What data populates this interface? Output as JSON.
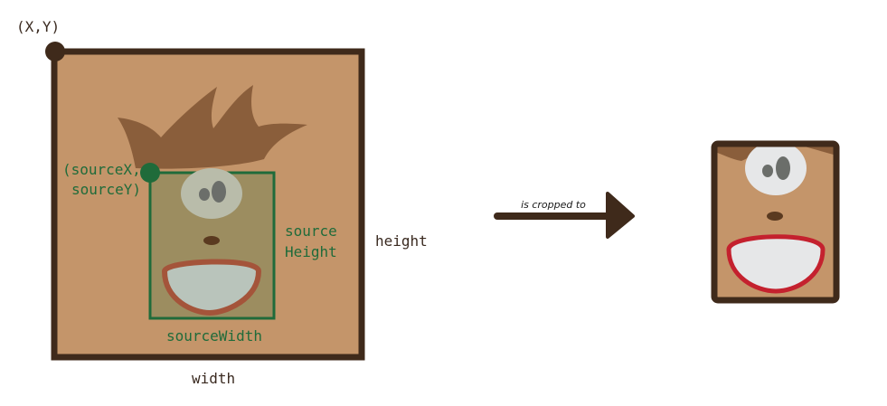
{
  "labels": {
    "origin": "(X,Y)",
    "source_origin_line1": "(sourceX,",
    "source_origin_line2": "sourceY)",
    "source_height_line1": "source",
    "source_height_line2": "Height",
    "source_width": "sourceWidth",
    "height": "height",
    "width": "width",
    "arrow_caption": "is cropped to"
  },
  "colors": {
    "frame": "#3f2a1b",
    "canvas": "#c4956a",
    "hair": "#8a5e3b",
    "crop_outline": "#1f6b3a",
    "crop_fill": "#9c8d60",
    "label_green": "#1f6b3a",
    "label_dark": "#3a2a20",
    "mouth_red": "#c4212e",
    "mouth_dimmed": "#a4543a",
    "eye_white": "#e6e7e8",
    "eye_gray": "#6b6e6a",
    "nose": "#5a3a20"
  }
}
